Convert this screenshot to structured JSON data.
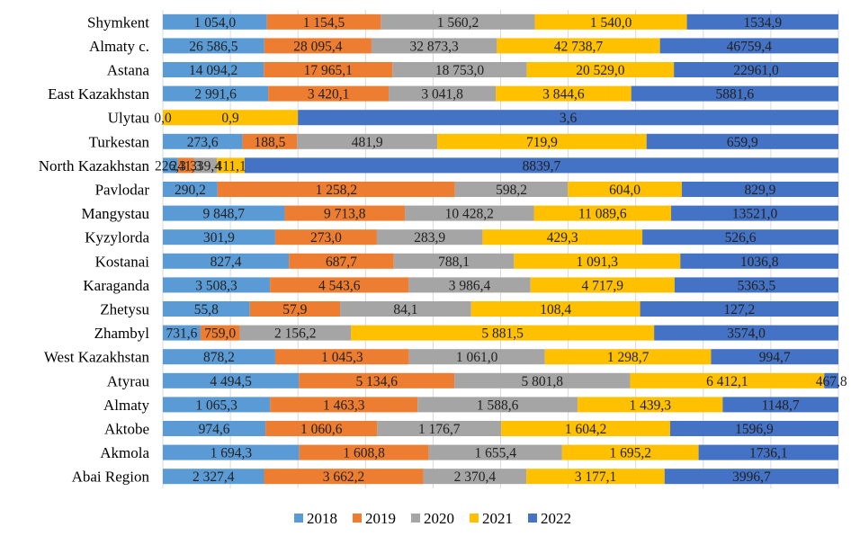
{
  "chart_data": {
    "type": "bar",
    "orientation": "horizontal",
    "stacked": true,
    "normalized": true,
    "grid": true,
    "legend_position": "bottom",
    "categories": [
      "Shymkent",
      "Almaty c.",
      "Astana",
      "East Kazakhstan",
      "Ulytau",
      "Turkestan",
      "North Kazakhstan",
      "Pavlodar",
      "Mangystau",
      "Kyzylorda",
      "Kostanai",
      "Karaganda",
      "Zhetysu",
      "Zhambyl",
      "West Kazakhstan",
      "Atyrau",
      "Almaty",
      "Aktobe",
      "Akmola",
      "Abai Region"
    ],
    "series": [
      {
        "name": "2018",
        "color": "#5B9BD5",
        "values": [
          1054.0,
          26586.5,
          14094.2,
          2991.6,
          0.0,
          273.6,
          226.3,
          290.2,
          9848.7,
          301.9,
          827.4,
          3508.3,
          55.8,
          731.6,
          878.2,
          4494.5,
          1065.3,
          974.6,
          1694.3,
          2327.4
        ],
        "labels": [
          "1 054,0",
          "26 586,5",
          "14 094,2",
          "2 991,6",
          "0,0",
          "273,6",
          "226,3",
          "290,2",
          "9 848,7",
          "301,9",
          "827,4",
          "3 508,3",
          "55,8",
          "731,6",
          "878,2",
          "4 494,5",
          "1 065,3",
          "974,6",
          "1 694,3",
          "2 327,4"
        ]
      },
      {
        "name": "2019",
        "color": "#ED7D31",
        "values": [
          1154.5,
          28095.4,
          17965.1,
          3420.1,
          0.0,
          188.5,
          241.3,
          1258.2,
          9713.8,
          273.0,
          687.7,
          4543.6,
          57.9,
          759.0,
          1045.3,
          5134.6,
          1463.3,
          1060.6,
          1608.8,
          3662.2
        ],
        "labels": [
          "1 154,5",
          "28 095,4",
          "17 965,1",
          "3 420,1",
          "",
          "188,5",
          "241,3",
          "1 258,2",
          "9 713,8",
          "273,0",
          "687,7",
          "4 543,6",
          "57,9",
          "759,0",
          "1 045,3",
          "5 134,6",
          "1 463,3",
          "1 060,6",
          "1 608,8",
          "3 662,2"
        ]
      },
      {
        "name": "2020",
        "color": "#A5A5A5",
        "values": [
          1560.2,
          32873.3,
          18753.0,
          3041.8,
          0.0,
          481.9,
          339.4,
          598.2,
          10428.2,
          283.9,
          788.1,
          3986.4,
          84.1,
          2156.2,
          1061.0,
          5801.8,
          1588.6,
          1176.7,
          1655.4,
          2370.4
        ],
        "labels": [
          "1 560,2",
          "32 873,3",
          "18 753,0",
          "3 041,8",
          "",
          "481,9",
          "339,4",
          "598,2",
          "10 428,2",
          "283,9",
          "788,1",
          "3 986,4",
          "84,1",
          "2 156,2",
          "1 061,0",
          "5 801,8",
          "1 588,6",
          "1 176,7",
          "1 655,4",
          "2 370,4"
        ]
      },
      {
        "name": "2021",
        "color": "#FFC000",
        "values": [
          1540.0,
          42738.7,
          20529.0,
          3844.6,
          0.9,
          719.9,
          411.1,
          604.0,
          11089.6,
          429.3,
          1091.3,
          4717.9,
          108.4,
          5881.5,
          1298.7,
          6412.1,
          1439.3,
          1604.2,
          1695.2,
          3177.1
        ],
        "labels": [
          "1 540,0",
          "42 738,7",
          "20 529,0",
          "3 844,6",
          "0,9",
          "719,9",
          "411,1",
          "604,0",
          "11 089,6",
          "429,3",
          "1 091,3",
          "4 717,9",
          "108,4",
          "5 881,5",
          "1 298,7",
          "6 412,1",
          "1 439,3",
          "1 604,2",
          "1 695,2",
          "3 177,1"
        ]
      },
      {
        "name": "2022",
        "color": "#4472C4",
        "values": [
          1534.9,
          46759.4,
          22961.0,
          5881.6,
          3.6,
          659.9,
          8839.7,
          829.9,
          13521.0,
          526.6,
          1036.8,
          5363.5,
          127.2,
          3574.0,
          994.7,
          467.8,
          1148.7,
          1596.9,
          1736.1,
          3996.7
        ],
        "labels": [
          "1534,9",
          "46759,4",
          "22961,0",
          "5881,6",
          "3,6",
          "659,9",
          "8839,7",
          "829,9",
          "13521,0",
          "526,6",
          "1036,8",
          "5363,5",
          "127,2",
          "3574,0",
          "994,7",
          "467,8",
          "1148,7",
          "1596,9",
          "1736,1",
          "3996,7"
        ]
      }
    ]
  }
}
